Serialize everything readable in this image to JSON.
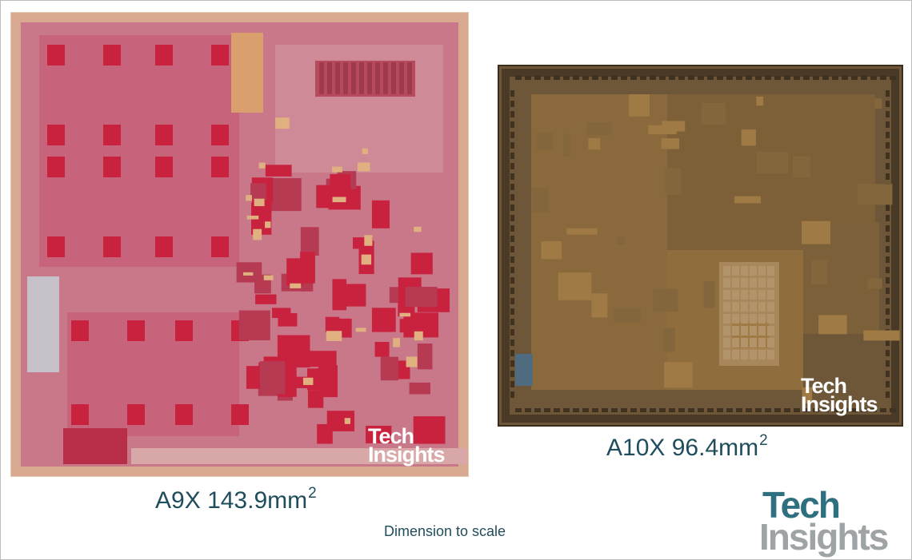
{
  "chips": [
    {
      "name": "A9X",
      "area": "143.9mm",
      "unit_superscript": "2",
      "die_color": "#c9788a",
      "block_color": "#c8223f"
    },
    {
      "name": "A10X",
      "area": "96.4mm",
      "unit_superscript": "2",
      "die_color": "#6e5738",
      "block_color": "#a07a45"
    }
  ],
  "note": "Dimension to scale",
  "watermark": {
    "line1": "Tech",
    "line2": "Insights"
  },
  "logo": {
    "line1": "Tech",
    "line2": "Insights",
    "colors": {
      "tech": "#2e6f80",
      "insights": "#9ea3a6"
    }
  },
  "caption_color": "#1f4d5c"
}
